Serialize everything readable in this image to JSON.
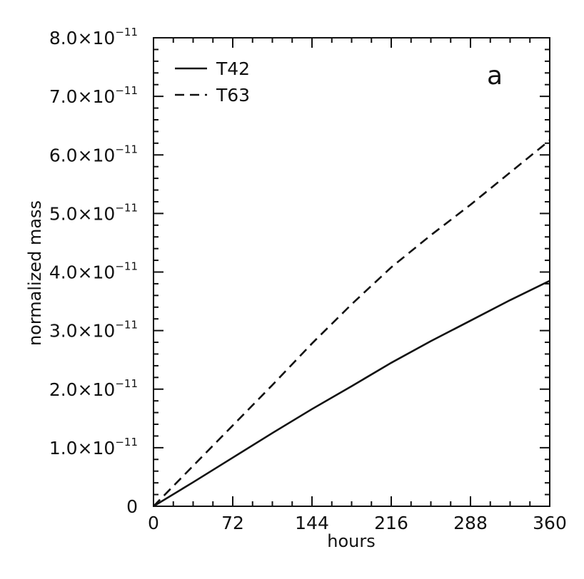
{
  "chart_data": {
    "type": "line",
    "panel_label": "a",
    "xlabel": "hours",
    "ylabel": "normalized mass",
    "xlim": [
      0,
      360
    ],
    "ylim": [
      0,
      8e-11
    ],
    "x_ticks": [
      0,
      72,
      144,
      216,
      288,
      360
    ],
    "x_tick_labels": [
      "0",
      "72",
      "144",
      "216",
      "288",
      "360"
    ],
    "y_ticks": [
      0,
      1e-11,
      2e-11,
      3e-11,
      4e-11,
      5e-11,
      6e-11,
      7e-11,
      8e-11
    ],
    "y_tick_labels": [
      {
        "mantissa": "0",
        "exponent": ""
      },
      {
        "mantissa": "1.0×10",
        "exponent": "−11"
      },
      {
        "mantissa": "2.0×10",
        "exponent": "−11"
      },
      {
        "mantissa": "3.0×10",
        "exponent": "−11"
      },
      {
        "mantissa": "4.0×10",
        "exponent": "−11"
      },
      {
        "mantissa": "5.0×10",
        "exponent": "−11"
      },
      {
        "mantissa": "6.0×10",
        "exponent": "−11"
      },
      {
        "mantissa": "7.0×10",
        "exponent": "−11"
      },
      {
        "mantissa": "8.0×10",
        "exponent": "−11"
      }
    ],
    "grid": false,
    "legend_position": "top-left",
    "series": [
      {
        "name": "T42",
        "style": "solid",
        "color": "#111111",
        "x": [
          0,
          36,
          72,
          108,
          144,
          180,
          216,
          252,
          288,
          324,
          360
        ],
        "y": [
          0,
          4.1e-12,
          8.3e-12,
          1.25e-11,
          1.66e-11,
          2.05e-11,
          2.45e-11,
          2.82e-11,
          3.17e-11,
          3.52e-11,
          3.85e-11
        ]
      },
      {
        "name": "T63",
        "style": "dashed",
        "color": "#111111",
        "x": [
          0,
          36,
          72,
          108,
          144,
          180,
          216,
          252,
          288,
          324,
          360
        ],
        "y": [
          0,
          6.9e-12,
          1.38e-11,
          2.07e-11,
          2.78e-11,
          3.45e-11,
          4.08e-11,
          4.63e-11,
          5.15e-11,
          5.7e-11,
          6.25e-11
        ]
      }
    ]
  }
}
